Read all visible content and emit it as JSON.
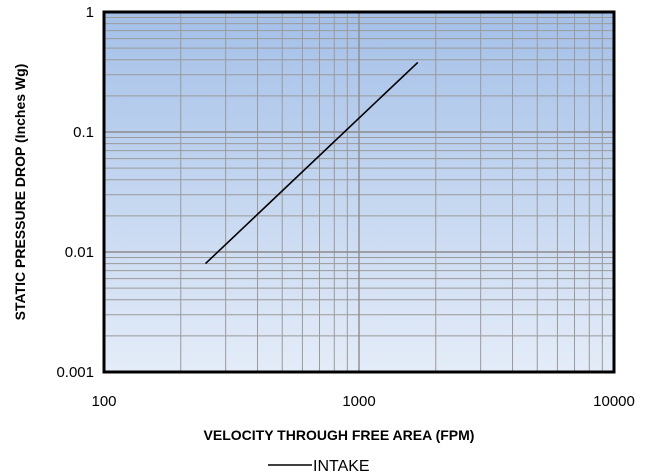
{
  "chart_data": {
    "type": "line",
    "title": "",
    "xlabel": "VELOCITY THROUGH FREE AREA (FPM)",
    "ylabel": "STATIC PRESSURE DROP (Inches Wg)",
    "x_scale": "log",
    "y_scale": "log",
    "xlim": [
      100,
      10000
    ],
    "ylim": [
      0.001,
      1
    ],
    "x_ticks": [
      100,
      1000,
      10000
    ],
    "x_tick_labels": [
      "100",
      "1000",
      "10000"
    ],
    "y_ticks": [
      0.001,
      0.01,
      0.1,
      1
    ],
    "y_tick_labels": [
      "0.001",
      "0.01",
      "0.1",
      "1"
    ],
    "grid": true,
    "legend_position": "bottom",
    "colors": {
      "line": "#000000",
      "plot_top": "#a4c0e8",
      "plot_bottom": "#e4ecf8",
      "grid_major": "#8c8c8c",
      "grid_minor": "#9a9a9a",
      "frame": "#000000"
    },
    "series": [
      {
        "name": "INTAKE",
        "x": [
          250,
          1700
        ],
        "y": [
          0.008,
          0.38
        ]
      }
    ]
  }
}
